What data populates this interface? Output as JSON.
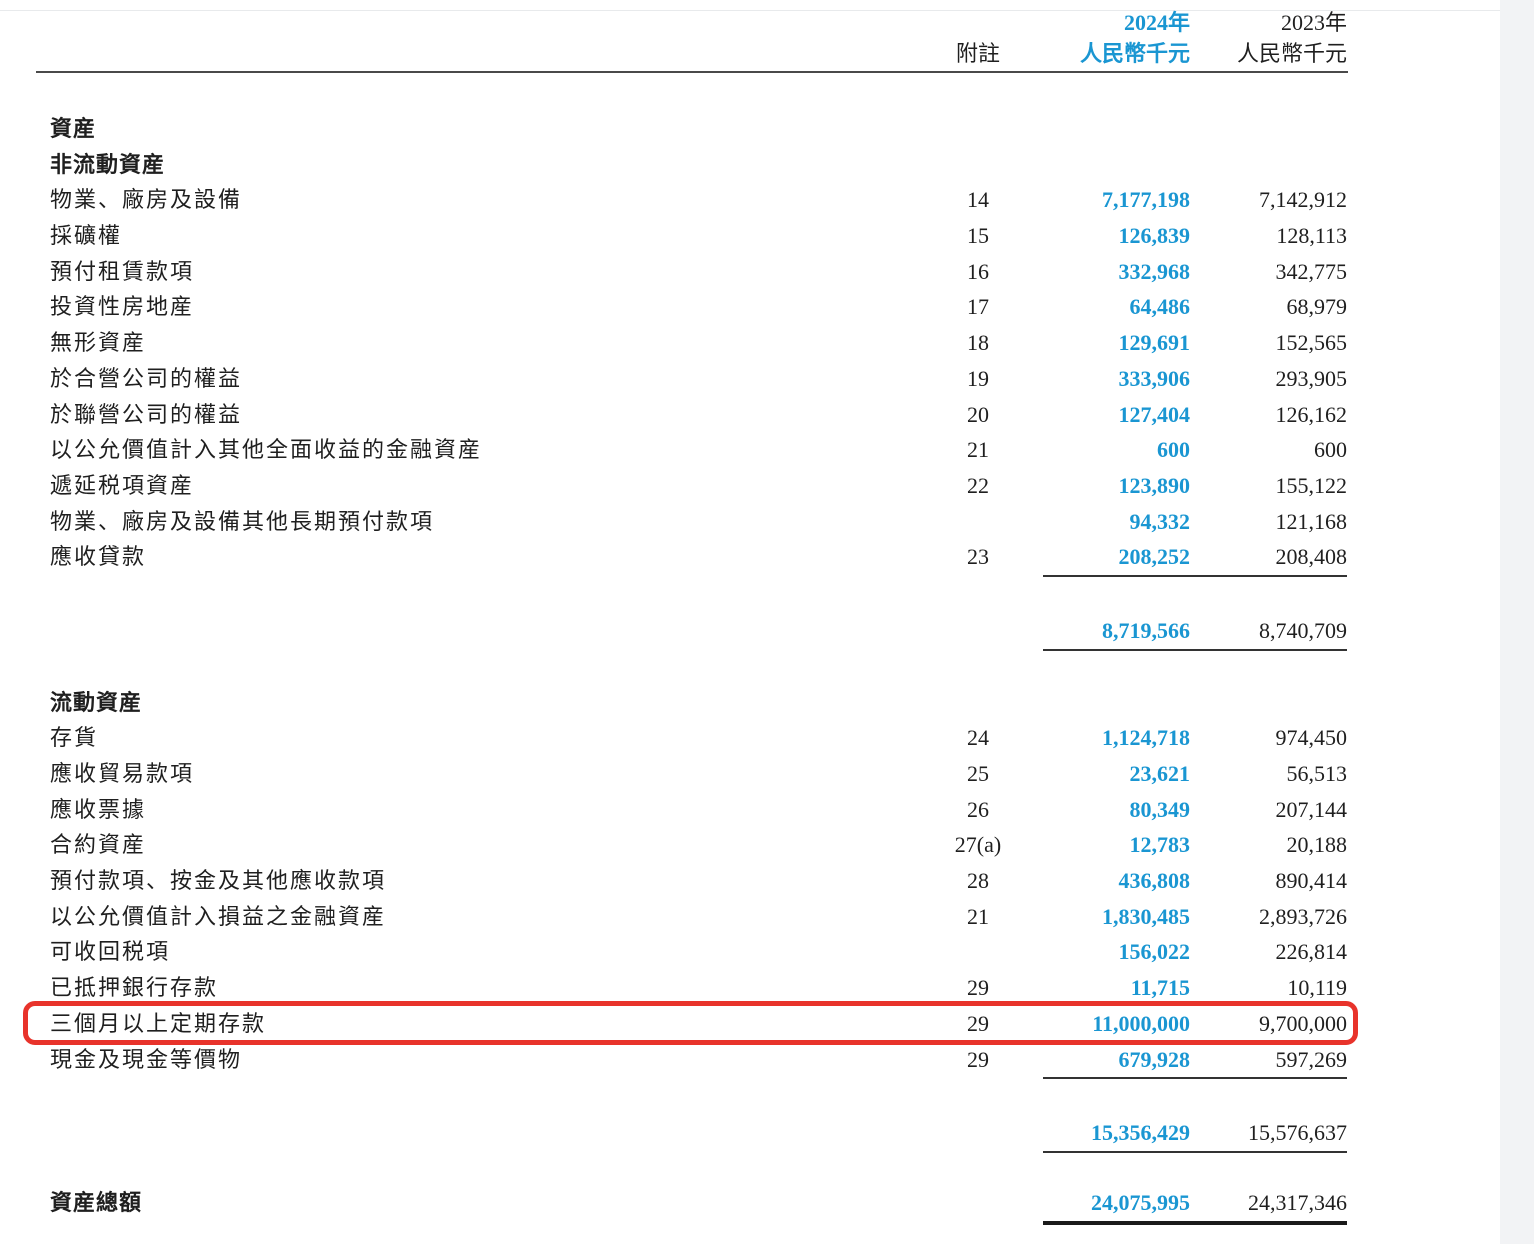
{
  "table": {
    "header": {
      "year_2024": "2024年",
      "year_2023": "2023年",
      "note_label": "附註",
      "unit_2024": "人民幣千元",
      "unit_2023": "人民幣千元"
    },
    "colors": {
      "accent_blue": "#1A96D2",
      "highlight_red": "#E8332B"
    },
    "rows": [
      {
        "type": "section",
        "label": "資産"
      },
      {
        "type": "section",
        "label": "非流動資産"
      },
      {
        "type": "item",
        "label": "物業、廠房及設備",
        "note": "14",
        "v2024": "7,177,198",
        "v2023": "7,142,912"
      },
      {
        "type": "item",
        "label": "採礦權",
        "note": "15",
        "v2024": "126,839",
        "v2023": "128,113"
      },
      {
        "type": "item",
        "label": "預付租賃款項",
        "note": "16",
        "v2024": "332,968",
        "v2023": "342,775"
      },
      {
        "type": "item",
        "label": "投資性房地産",
        "note": "17",
        "v2024": "64,486",
        "v2023": "68,979"
      },
      {
        "type": "item",
        "label": "無形資産",
        "note": "18",
        "v2024": "129,691",
        "v2023": "152,565"
      },
      {
        "type": "item",
        "label": "於合營公司的權益",
        "note": "19",
        "v2024": "333,906",
        "v2023": "293,905"
      },
      {
        "type": "item",
        "label": "於聯營公司的權益",
        "note": "20",
        "v2024": "127,404",
        "v2023": "126,162"
      },
      {
        "type": "item",
        "label": "以公允價值計入其他全面收益的金融資産",
        "note": "21",
        "v2024": "600",
        "v2023": "600"
      },
      {
        "type": "item",
        "label": "遞延税項資産",
        "note": "22",
        "v2024": "123,890",
        "v2023": "155,122"
      },
      {
        "type": "item",
        "label": "物業、廠房及設備其他長期預付款項",
        "note": "",
        "v2024": "94,332",
        "v2023": "121,168"
      },
      {
        "type": "item",
        "label": "應收貸款",
        "note": "23",
        "v2024": "208,252",
        "v2023": "208,408"
      },
      {
        "type": "rule"
      },
      {
        "type": "subtotal",
        "label": "",
        "note": "",
        "v2024": "8,719,566",
        "v2023": "8,740,709"
      },
      {
        "type": "rule"
      },
      {
        "type": "section",
        "label": "流動資産"
      },
      {
        "type": "item",
        "label": "存貨",
        "note": "24",
        "v2024": "1,124,718",
        "v2023": "974,450"
      },
      {
        "type": "item",
        "label": "應收貿易款項",
        "note": "25",
        "v2024": "23,621",
        "v2023": "56,513"
      },
      {
        "type": "item",
        "label": "應收票據",
        "note": "26",
        "v2024": "80,349",
        "v2023": "207,144"
      },
      {
        "type": "item",
        "label": "合約資産",
        "note": "27(a)",
        "v2024": "12,783",
        "v2023": "20,188"
      },
      {
        "type": "item",
        "label": "預付款項、按金及其他應收款項",
        "note": "28",
        "v2024": "436,808",
        "v2023": "890,414"
      },
      {
        "type": "item",
        "label": "以公允價值計入損益之金融資産",
        "note": "21",
        "v2024": "1,830,485",
        "v2023": "2,893,726"
      },
      {
        "type": "item",
        "label": "可收回税項",
        "note": "",
        "v2024": "156,022",
        "v2023": "226,814"
      },
      {
        "type": "item",
        "label": "已抵押銀行存款",
        "note": "29",
        "v2024": "11,715",
        "v2023": "10,119"
      },
      {
        "type": "item",
        "label": "三個月以上定期存款",
        "note": "29",
        "v2024": "11,000,000",
        "v2023": "9,700,000",
        "highlight": true
      },
      {
        "type": "item",
        "label": "現金及現金等價物",
        "note": "29",
        "v2024": "679,928",
        "v2023": "597,269"
      },
      {
        "type": "rule"
      },
      {
        "type": "subtotal",
        "label": "",
        "note": "",
        "v2024": "15,356,429",
        "v2023": "15,576,637"
      },
      {
        "type": "rule"
      },
      {
        "type": "total",
        "label": "資産總額",
        "note": "",
        "v2024": "24,075,995",
        "v2023": "24,317,346"
      },
      {
        "type": "rule_thick"
      }
    ]
  }
}
